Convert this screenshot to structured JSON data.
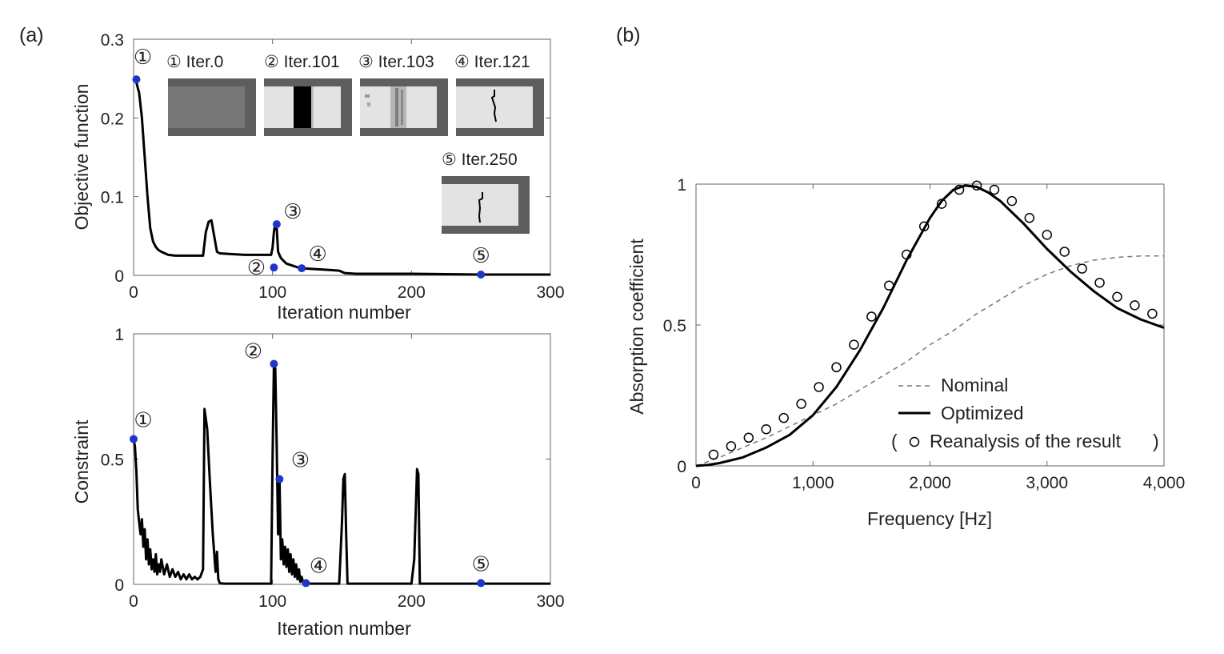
{
  "panel_labels": [
    "(a)",
    "(b)"
  ],
  "chart_data": [
    {
      "type": "line",
      "panel": "(a) top",
      "xlabel": "Iteration number",
      "ylabel": "Objective function",
      "xlim": [
        0,
        300
      ],
      "ylim": [
        0,
        0.3
      ],
      "xticks": [
        "0",
        "100",
        "200",
        "300"
      ],
      "yticks": [
        "0",
        "0.1",
        "0.2",
        "0.3"
      ],
      "series": [
        {
          "x": [
            0,
            2,
            4,
            6,
            8,
            10,
            12,
            14,
            16,
            18,
            20,
            25,
            30,
            40,
            50,
            52,
            54,
            56,
            58,
            60,
            62,
            70,
            80,
            90,
            99,
            100,
            101,
            102,
            103,
            104,
            106,
            110,
            115,
            120,
            130,
            140,
            148,
            152,
            160,
            200,
            250,
            300
          ],
          "y": [
            0.25,
            0.245,
            0.232,
            0.2,
            0.15,
            0.1,
            0.06,
            0.043,
            0.036,
            0.032,
            0.03,
            0.026,
            0.025,
            0.025,
            0.025,
            0.055,
            0.068,
            0.07,
            0.05,
            0.03,
            0.028,
            0.027,
            0.026,
            0.026,
            0.026,
            0.035,
            0.055,
            0.066,
            0.06,
            0.03,
            0.022,
            0.015,
            0.012,
            0.009,
            0.008,
            0.007,
            0.006,
            0.003,
            0.002,
            0.002,
            0.001,
            0.001
          ]
        }
      ],
      "markers": [
        {
          "label": "①",
          "x": 2,
          "y": 0.249
        },
        {
          "label": "②",
          "x": 101,
          "y": 0.01
        },
        {
          "label": "③",
          "x": 103,
          "y": 0.065
        },
        {
          "label": "④",
          "x": 121,
          "y": 0.009
        },
        {
          "label": "⑤",
          "x": 250,
          "y": 0.001
        }
      ],
      "insets": [
        {
          "label": "① Iter.0"
        },
        {
          "label": "② Iter.101"
        },
        {
          "label": "③ Iter.103"
        },
        {
          "label": "④ Iter.121"
        },
        {
          "label": "⑤ Iter.250"
        }
      ]
    },
    {
      "type": "line",
      "panel": "(a) bottom",
      "xlabel": "Iteration number",
      "ylabel": "Constraint",
      "xlim": [
        0,
        300
      ],
      "ylim": [
        0,
        1
      ],
      "xticks": [
        "0",
        "100",
        "200",
        "300"
      ],
      "yticks": [
        "0",
        "0.5",
        "1"
      ],
      "series": [
        {
          "x": [
            0,
            1,
            2,
            3,
            4,
            5,
            6,
            7,
            8,
            9,
            10,
            11,
            12,
            13,
            14,
            15,
            16,
            17,
            18,
            19,
            20,
            22,
            24,
            26,
            28,
            30,
            32,
            34,
            36,
            38,
            40,
            42,
            44,
            46,
            48,
            50,
            51,
            53,
            55,
            57,
            59,
            60,
            61,
            62,
            63,
            65,
            70,
            80,
            90,
            99,
            100,
            101,
            102,
            103,
            104,
            105,
            106,
            107,
            108,
            109,
            110,
            111,
            112,
            113,
            114,
            115,
            116,
            117,
            118,
            119,
            120,
            121,
            122,
            123,
            124,
            125,
            130,
            140,
            148,
            150,
            151,
            152,
            153,
            154,
            156,
            160,
            180,
            200,
            202,
            204,
            205,
            206,
            207,
            210,
            250,
            300
          ],
          "y": [
            0.58,
            0.55,
            0.45,
            0.3,
            0.25,
            0.2,
            0.26,
            0.15,
            0.22,
            0.1,
            0.18,
            0.08,
            0.14,
            0.06,
            0.1,
            0.05,
            0.12,
            0.04,
            0.08,
            0.05,
            0.1,
            0.04,
            0.08,
            0.03,
            0.06,
            0.03,
            0.05,
            0.02,
            0.04,
            0.02,
            0.04,
            0.02,
            0.03,
            0.02,
            0.03,
            0.06,
            0.7,
            0.62,
            0.4,
            0.2,
            0.05,
            0.13,
            0.02,
            0.005,
            0.004,
            0.003,
            0.003,
            0.003,
            0.003,
            0.003,
            0.5,
            0.88,
            0.86,
            0.55,
            0.2,
            0.42,
            0.1,
            0.18,
            0.08,
            0.15,
            0.07,
            0.14,
            0.05,
            0.12,
            0.04,
            0.1,
            0.03,
            0.08,
            0.02,
            0.06,
            0.01,
            0.03,
            0.005,
            0.003,
            0.003,
            0.003,
            0.003,
            0.003,
            0.003,
            0.25,
            0.42,
            0.44,
            0.2,
            0.003,
            0.003,
            0.003,
            0.003,
            0.003,
            0.1,
            0.46,
            0.44,
            0.003,
            0.003,
            0.003,
            0.003,
            0.003
          ]
        }
      ],
      "markers": [
        {
          "label": "①",
          "x": 0,
          "y": 0.58
        },
        {
          "label": "②",
          "x": 101,
          "y": 0.88
        },
        {
          "label": "③",
          "x": 105,
          "y": 0.42
        },
        {
          "label": "④",
          "x": 124,
          "y": 0.005
        },
        {
          "label": "⑤",
          "x": 250,
          "y": 0.005
        }
      ]
    },
    {
      "type": "line",
      "panel": "(b)",
      "xlabel": "Frequency [Hz]",
      "ylabel": "Absorption coefficient",
      "xlim": [
        0,
        4000
      ],
      "ylim": [
        0,
        1
      ],
      "xticks": [
        "0",
        "1,000",
        "2,000",
        "3,000",
        "4,000"
      ],
      "yticks": [
        "0",
        "0.5",
        "1"
      ],
      "legend": {
        "position": "bottom-right",
        "entries": [
          "Nominal",
          "Optimized",
          "Reanalysis of the result"
        ],
        "open_paren": "(",
        "close_paren": ")"
      },
      "series": [
        {
          "name": "Nominal",
          "style": "dashed",
          "x": [
            0,
            200,
            400,
            600,
            800,
            1000,
            1200,
            1400,
            1600,
            1800,
            2000,
            2200,
            2400,
            2600,
            2800,
            3000,
            3200,
            3400,
            3600,
            3800,
            4000
          ],
          "y": [
            0.0,
            0.03,
            0.065,
            0.1,
            0.14,
            0.18,
            0.22,
            0.27,
            0.32,
            0.37,
            0.43,
            0.48,
            0.54,
            0.59,
            0.64,
            0.68,
            0.71,
            0.73,
            0.74,
            0.745,
            0.745
          ]
        },
        {
          "name": "Optimized",
          "style": "solid",
          "x": [
            0,
            100,
            200,
            400,
            600,
            800,
            1000,
            1200,
            1400,
            1600,
            1800,
            2000,
            2100,
            2200,
            2300,
            2400,
            2500,
            2600,
            2800,
            3000,
            3200,
            3400,
            3600,
            3800,
            4000
          ],
          "y": [
            0.0,
            0.003,
            0.01,
            0.03,
            0.065,
            0.11,
            0.18,
            0.28,
            0.41,
            0.56,
            0.73,
            0.88,
            0.94,
            0.98,
            0.995,
            0.99,
            0.97,
            0.94,
            0.86,
            0.77,
            0.69,
            0.62,
            0.56,
            0.52,
            0.49
          ]
        },
        {
          "name": "Reanalysis of the result",
          "style": "circles",
          "x": [
            150,
            300,
            450,
            600,
            750,
            900,
            1050,
            1200,
            1350,
            1500,
            1650,
            1800,
            1950,
            2100,
            2250,
            2400,
            2550,
            2700,
            2850,
            3000,
            3150,
            3300,
            3450,
            3600,
            3750,
            3900
          ],
          "y": [
            0.04,
            0.07,
            0.1,
            0.13,
            0.17,
            0.22,
            0.28,
            0.35,
            0.43,
            0.53,
            0.64,
            0.75,
            0.85,
            0.93,
            0.98,
            0.995,
            0.98,
            0.94,
            0.88,
            0.82,
            0.76,
            0.7,
            0.65,
            0.6,
            0.57,
            0.54
          ]
        }
      ]
    }
  ]
}
